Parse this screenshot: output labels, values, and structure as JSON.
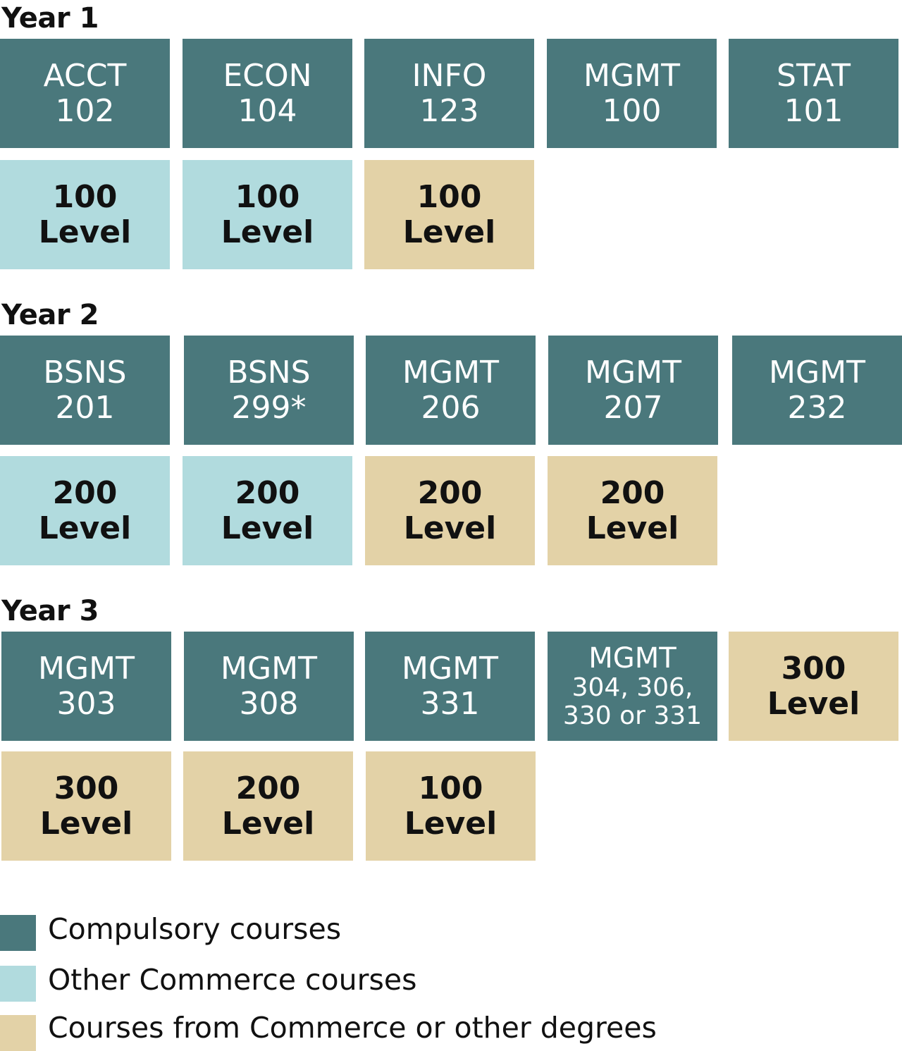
{
  "colors": {
    "compulsory": "#4a787c",
    "commerce": "#b1dbde",
    "other": "#e3d2a7"
  },
  "years": [
    {
      "title": "Year 1",
      "row1": [
        {
          "l1": "ACCT",
          "l2": "102"
        },
        {
          "l1": "ECON",
          "l2": "104"
        },
        {
          "l1": "INFO",
          "l2": "123"
        },
        {
          "l1": "MGMT",
          "l2": "100"
        },
        {
          "l1": "STAT",
          "l2": "101"
        }
      ],
      "row2": [
        {
          "l1": "100",
          "l2": "Level"
        },
        {
          "l1": "100",
          "l2": "Level"
        },
        {
          "l1": "100",
          "l2": "Level"
        }
      ]
    },
    {
      "title": "Year 2",
      "row1": [
        {
          "l1": "BSNS",
          "l2": "201"
        },
        {
          "l1": "BSNS",
          "l2": "299*"
        },
        {
          "l1": "MGMT",
          "l2": "206"
        },
        {
          "l1": "MGMT",
          "l2": "207"
        },
        {
          "l1": "MGMT",
          "l2": "232"
        }
      ],
      "row2": [
        {
          "l1": "200",
          "l2": "Level"
        },
        {
          "l1": "200",
          "l2": "Level"
        },
        {
          "l1": "200",
          "l2": "Level"
        },
        {
          "l1": "200",
          "l2": "Level"
        }
      ]
    },
    {
      "title": "Year 3",
      "row1": [
        {
          "l1": "MGMT",
          "l2": "303"
        },
        {
          "l1": "MGMT",
          "l2": "308"
        },
        {
          "l1": "MGMT",
          "l2": "331"
        },
        {
          "l1": "MGMT",
          "l2": "304, 306,",
          "l3": "330 or 331"
        },
        {
          "l1": "300",
          "l2": "Level"
        }
      ],
      "row2": [
        {
          "l1": "300",
          "l2": "Level"
        },
        {
          "l1": "200",
          "l2": "Level"
        },
        {
          "l1": "100",
          "l2": "Level"
        }
      ]
    }
  ],
  "legend": [
    {
      "label": "Compulsory courses"
    },
    {
      "label": "Other Commerce courses"
    },
    {
      "label": "Courses from Commerce or other degrees"
    }
  ]
}
